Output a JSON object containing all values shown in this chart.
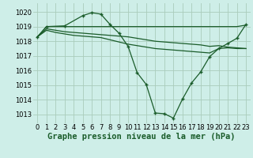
{
  "background_color": "#ceeee8",
  "grid_color": "#aaccbb",
  "line_color": "#1a5c2a",
  "marker_color": "#1a5c2a",
  "xlabel": "Graphe pression niveau de la mer (hPa)",
  "xlabel_fontsize": 7.5,
  "tick_fontsize": 6,
  "ylim": [
    1012.4,
    1020.6
  ],
  "xlim": [
    -0.5,
    23.5
  ],
  "yticks": [
    1013,
    1014,
    1015,
    1016,
    1017,
    1018,
    1019,
    1020
  ],
  "xticks": [
    0,
    1,
    2,
    3,
    4,
    5,
    6,
    7,
    8,
    9,
    10,
    11,
    12,
    13,
    14,
    15,
    16,
    17,
    18,
    19,
    20,
    21,
    22,
    23
  ],
  "series": [
    {
      "x": [
        0,
        1,
        2,
        3,
        4,
        5,
        6,
        7,
        8,
        9,
        10,
        11,
        12,
        13,
        14,
        15,
        16,
        17,
        18,
        19,
        20,
        21,
        22,
        23
      ],
      "y": [
        1018.3,
        1019.0,
        1019.0,
        1019.0,
        1019.0,
        1019.0,
        1019.0,
        1019.0,
        1019.0,
        1019.0,
        1019.0,
        1019.0,
        1019.0,
        1019.0,
        1019.0,
        1019.0,
        1019.0,
        1019.0,
        1019.0,
        1019.0,
        1019.0,
        1019.0,
        1019.0,
        1019.1
      ],
      "has_markers": false,
      "lw": 0.9
    },
    {
      "x": [
        0,
        1,
        2,
        3,
        4,
        5,
        6,
        7,
        8,
        9,
        10,
        11,
        12,
        13,
        14,
        15,
        16,
        17,
        18,
        19,
        20,
        21,
        22,
        23
      ],
      "y": [
        1018.3,
        1018.85,
        1018.75,
        1018.65,
        1018.6,
        1018.55,
        1018.5,
        1018.45,
        1018.4,
        1018.35,
        1018.3,
        1018.2,
        1018.1,
        1018.0,
        1017.95,
        1017.9,
        1017.85,
        1017.8,
        1017.75,
        1017.65,
        1017.7,
        1017.6,
        1017.55,
        1017.5
      ],
      "has_markers": false,
      "lw": 0.9
    },
    {
      "x": [
        0,
        1,
        2,
        3,
        4,
        5,
        6,
        7,
        8,
        9,
        10,
        11,
        12,
        13,
        14,
        15,
        16,
        17,
        18,
        19,
        20,
        21,
        22,
        23
      ],
      "y": [
        1018.3,
        1018.75,
        1018.6,
        1018.5,
        1018.4,
        1018.35,
        1018.3,
        1018.25,
        1018.1,
        1017.95,
        1017.8,
        1017.7,
        1017.6,
        1017.5,
        1017.45,
        1017.4,
        1017.35,
        1017.3,
        1017.25,
        1017.2,
        1017.5,
        1017.55,
        1017.5,
        1017.5
      ],
      "has_markers": false,
      "lw": 0.9
    },
    {
      "x": [
        0,
        1,
        3,
        5,
        6,
        7,
        8,
        9,
        10,
        11,
        12,
        13,
        14,
        15,
        16,
        17,
        18,
        19,
        20,
        21,
        22,
        23
      ],
      "y": [
        1018.3,
        1019.0,
        1019.05,
        1019.75,
        1019.95,
        1019.85,
        1019.15,
        1018.55,
        1017.65,
        1015.85,
        1015.05,
        1013.1,
        1013.05,
        1012.75,
        1014.05,
        1015.15,
        1015.9,
        1016.95,
        1017.5,
        1017.85,
        1018.2,
        1019.15
      ],
      "has_markers": true,
      "lw": 0.9
    }
  ]
}
